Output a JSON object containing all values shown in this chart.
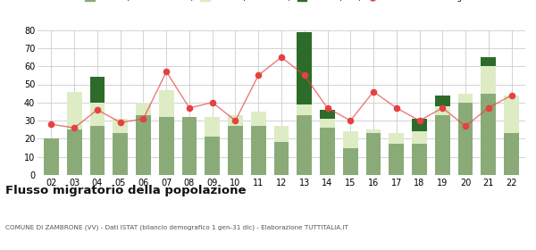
{
  "years": [
    "02",
    "03",
    "04",
    "05",
    "06",
    "07",
    "08",
    "09",
    "10",
    "11",
    "12",
    "13",
    "14",
    "15",
    "16",
    "17",
    "18",
    "19",
    "20",
    "21",
    "22"
  ],
  "iscritti_comuni": [
    20,
    25,
    27,
    23,
    33,
    32,
    32,
    21,
    27,
    27,
    18,
    33,
    26,
    15,
    23,
    17,
    17,
    33,
    40,
    45,
    23
  ],
  "iscritti_estero": [
    0,
    21,
    13,
    8,
    7,
    15,
    0,
    11,
    6,
    8,
    9,
    6,
    5,
    9,
    2,
    6,
    7,
    5,
    5,
    15,
    21
  ],
  "iscritti_altri": [
    0,
    0,
    14,
    0,
    0,
    0,
    0,
    0,
    0,
    0,
    0,
    40,
    5,
    0,
    0,
    0,
    7,
    6,
    0,
    5,
    0
  ],
  "cancellati": [
    28,
    26,
    36,
    29,
    31,
    57,
    37,
    40,
    30,
    55,
    65,
    55,
    37,
    30,
    46,
    37,
    30,
    37,
    27,
    37,
    44
  ],
  "color_comuni": "#8aab78",
  "color_estero": "#ddecc5",
  "color_altri": "#2d6b2a",
  "color_cancellati": "#e84040",
  "background_plot": "#ffffff",
  "background_fig": "#ffffff",
  "grid_color": "#cccccc",
  "ylim": [
    0,
    80
  ],
  "yticks": [
    0,
    10,
    20,
    30,
    40,
    50,
    60,
    70,
    80
  ],
  "title": "Flusso migratorio della popolazione",
  "subtitle": "COMUNE DI ZAMBRONE (VV) - Dati ISTAT (bilancio demografico 1 gen-31 dic) - Elaborazione TUTTITALIA.IT"
}
